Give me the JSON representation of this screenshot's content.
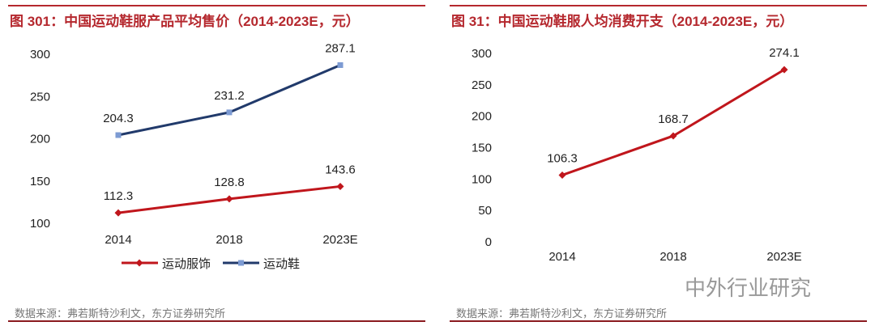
{
  "chart_data": [
    {
      "type": "line",
      "title": "图 301：中国运动鞋服产品平均售价（2014-2023E，元）",
      "categories": [
        "2014",
        "2018",
        "2023E"
      ],
      "ylim": [
        100,
        300
      ],
      "yticks": [
        100,
        150,
        200,
        250,
        300
      ],
      "legend_position": "bottom",
      "grid": false,
      "series": [
        {
          "name": "运动服饰",
          "values": [
            112.3,
            128.8,
            143.6
          ],
          "labels": [
            "112.3",
            "128.8",
            "143.6"
          ],
          "color": "#c0161c",
          "marker": "diamond"
        },
        {
          "name": "运动鞋",
          "values": [
            204.3,
            231.2,
            287.1
          ],
          "labels": [
            "204.3",
            "231.2",
            "287.1"
          ],
          "color": "#213a6b",
          "marker": "square",
          "marker_color": "#7d9bd3"
        }
      ],
      "source": "数据来源：弗若斯特沙利文，东方证券研究所"
    },
    {
      "type": "line",
      "title": "图 31：中国运动鞋服人均消费开支（2014-2023E，元）",
      "categories": [
        "2014",
        "2018",
        "2023E"
      ],
      "ylim": [
        0,
        300
      ],
      "yticks": [
        0,
        50,
        100,
        150,
        200,
        250,
        300
      ],
      "grid": false,
      "series": [
        {
          "values": [
            106.3,
            168.7,
            274.1
          ],
          "labels": [
            "106.3",
            "168.7",
            "274.1"
          ],
          "color": "#c0161c",
          "marker": "diamond"
        }
      ],
      "source": "数据来源：弗若斯特沙利文，东方证券研究所"
    }
  ],
  "watermark": "中外行业研究"
}
